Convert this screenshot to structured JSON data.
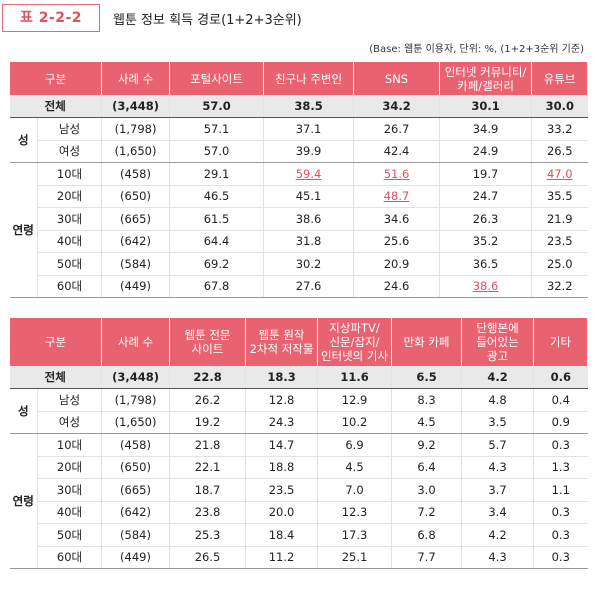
{
  "badge": "표 2-2-2",
  "title": "웹툰 정보 획득 경로(1+2+3순위)",
  "base_note": "(Base: 웹툰 이용자, 단위: %, (1+2+3순위 기준)",
  "accent_color": "#e8626f",
  "table1": {
    "headers": [
      "구분",
      "사례 수",
      "포털사이트",
      "친구나 주변인",
      "SNS",
      "인터넷 커뮤니티/\n카페/갤러리",
      "유튜브"
    ],
    "total": {
      "label": "전체",
      "n": "(3,448)",
      "values": [
        "57.0",
        "38.5",
        "34.2",
        "30.1",
        "30.0"
      ]
    },
    "groups": [
      {
        "name": "성",
        "rows": [
          {
            "label": "남성",
            "n": "(1,798)",
            "values": [
              "57.1",
              "37.1",
              "26.7",
              "34.9",
              "33.2"
            ]
          },
          {
            "label": "여성",
            "n": "(1,650)",
            "values": [
              "57.0",
              "39.9",
              "42.4",
              "24.9",
              "26.5"
            ]
          }
        ]
      },
      {
        "name": "연령",
        "rows": [
          {
            "label": "10대",
            "n": "(458)",
            "values": [
              "29.1",
              "59.4",
              "51.6",
              "19.7",
              "47.0"
            ]
          },
          {
            "label": "20대",
            "n": "(650)",
            "values": [
              "46.5",
              "45.1",
              "48.7",
              "24.7",
              "35.5"
            ]
          },
          {
            "label": "30대",
            "n": "(665)",
            "values": [
              "61.5",
              "38.6",
              "34.6",
              "26.3",
              "21.9"
            ]
          },
          {
            "label": "40대",
            "n": "(642)",
            "values": [
              "64.4",
              "31.8",
              "25.6",
              "35.2",
              "23.5"
            ]
          },
          {
            "label": "50대",
            "n": "(584)",
            "values": [
              "69.2",
              "30.2",
              "20.9",
              "36.5",
              "25.0"
            ]
          },
          {
            "label": "60대",
            "n": "(449)",
            "values": [
              "67.8",
              "27.6",
              "24.6",
              "38.6",
              "32.2"
            ]
          }
        ]
      }
    ]
  },
  "table2": {
    "headers": [
      "구분",
      "사례 수",
      "웹툰 전문\n사이트",
      "웹툰 원작\n2차적 저작물",
      "지상파TV/\n신문/잡지/\n인터넷의 기사",
      "만화 카페",
      "단행본에\n들어있는\n광고",
      "기타"
    ],
    "total": {
      "label": "전체",
      "n": "(3,448)",
      "values": [
        "22.8",
        "18.3",
        "11.6",
        "6.5",
        "4.2",
        "0.6"
      ]
    },
    "groups": [
      {
        "name": "성",
        "rows": [
          {
            "label": "남성",
            "n": "(1,798)",
            "values": [
              "26.2",
              "12.8",
              "12.9",
              "8.3",
              "4.8",
              "0.4"
            ]
          },
          {
            "label": "여성",
            "n": "(1,650)",
            "values": [
              "19.2",
              "24.3",
              "10.2",
              "4.5",
              "3.5",
              "0.9"
            ]
          }
        ]
      },
      {
        "name": "연령",
        "rows": [
          {
            "label": "10대",
            "n": "(458)",
            "values": [
              "21.8",
              "14.7",
              "6.9",
              "9.2",
              "5.7",
              "0.3"
            ]
          },
          {
            "label": "20대",
            "n": "(650)",
            "values": [
              "22.1",
              "18.8",
              "4.5",
              "6.4",
              "4.3",
              "1.3"
            ]
          },
          {
            "label": "30대",
            "n": "(665)",
            "values": [
              "18.7",
              "23.5",
              "7.0",
              "3.0",
              "3.7",
              "1.1"
            ]
          },
          {
            "label": "40대",
            "n": "(642)",
            "values": [
              "23.8",
              "20.0",
              "12.3",
              "7.2",
              "3.4",
              "0.3"
            ]
          },
          {
            "label": "50대",
            "n": "(584)",
            "values": [
              "25.3",
              "18.4",
              "17.3",
              "6.8",
              "4.2",
              "0.3"
            ]
          },
          {
            "label": "60대",
            "n": "(449)",
            "values": [
              "26.5",
              "11.2",
              "25.1",
              "7.7",
              "4.3",
              "0.3"
            ]
          }
        ]
      }
    ]
  }
}
